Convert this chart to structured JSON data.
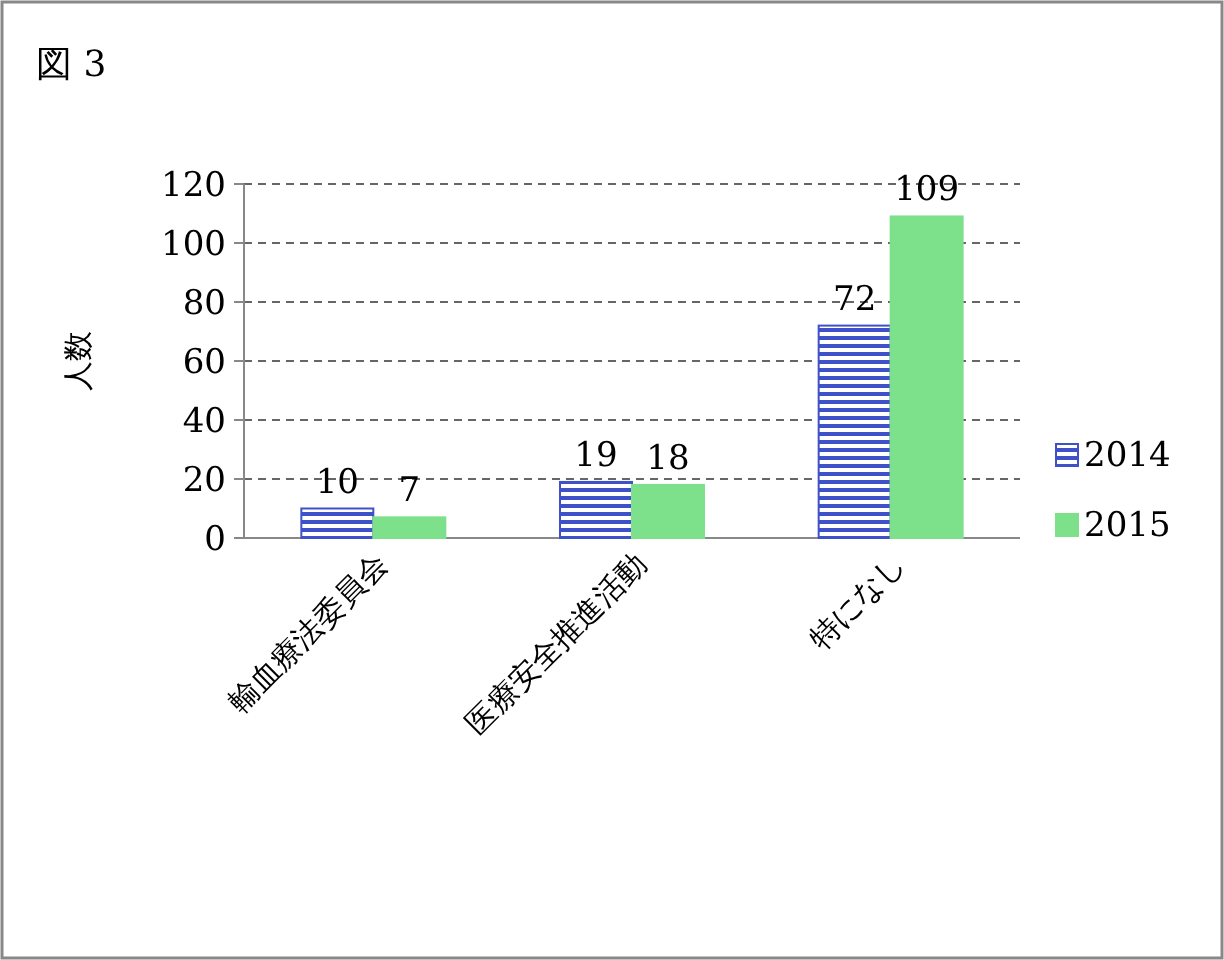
{
  "chart_data": {
    "type": "bar",
    "title": "図 3",
    "ylabel": "人数",
    "categories": [
      "輸血療法委員会",
      "医療安全推進活動",
      "特になし"
    ],
    "series": [
      {
        "name": "2014",
        "color": "#3f51c8",
        "values": [
          10,
          19,
          72
        ]
      },
      {
        "name": "2015",
        "color": "#7de08a",
        "values": [
          7,
          18,
          109
        ]
      }
    ],
    "ylim": [
      0,
      120
    ],
    "yticks": [
      0,
      20,
      40,
      60,
      80,
      100,
      120
    ],
    "grid": "y",
    "legend": "right",
    "data_labels": true
  }
}
